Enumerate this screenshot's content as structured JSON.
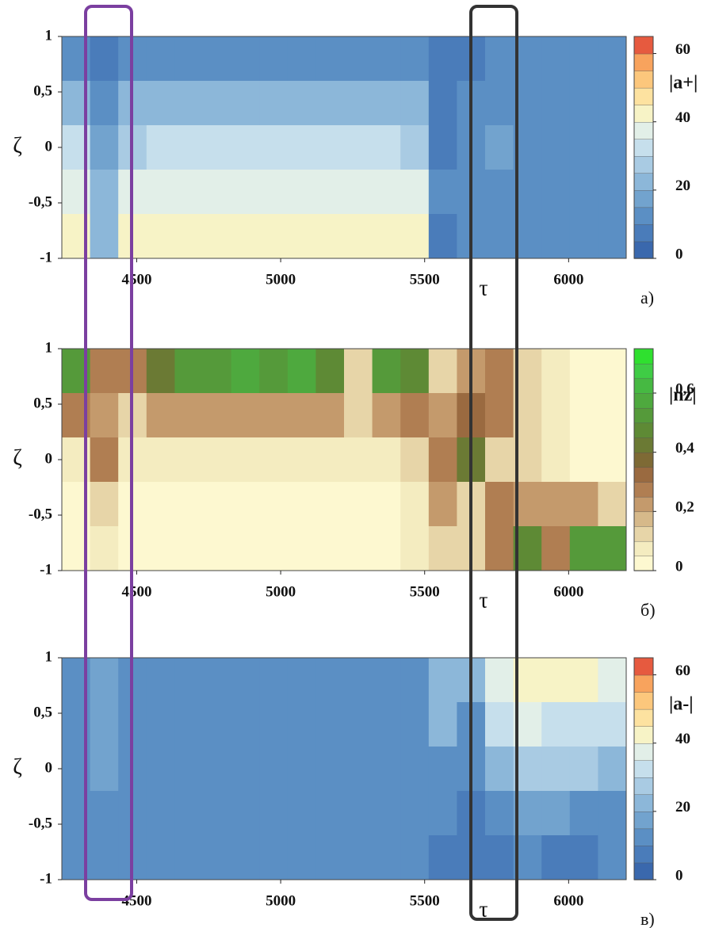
{
  "chart_data": [
    {
      "type": "contour",
      "panel_label": "а)",
      "xlabel": "τ",
      "ylabel": "ζ",
      "colorbar_label": "|a+|",
      "xlim": [
        4240,
        6200
      ],
      "xticks": [
        4500,
        5000,
        5500,
        6000
      ],
      "ylim": [
        -1,
        1
      ],
      "yticks": [
        -1,
        {
          "value": -0.5,
          "label": "-0,5"
        },
        0,
        {
          "value": 0.5,
          "label": "0,5"
        },
        1
      ],
      "clim": [
        0,
        65
      ],
      "cticks": [
        0,
        20,
        40,
        60
      ],
      "colors": [
        "#3a68ad",
        "#4a7cba",
        "#5b8fc4",
        "#72a3ce",
        "#8cb7d9",
        "#a9cbe3",
        "#c6dfec",
        "#e2efe8",
        "#f7f3c6",
        "#fde2a0",
        "#fcc77c",
        "#f8a35d",
        "#e65a3f"
      ],
      "x": [
        4289,
        4387,
        4485,
        4583,
        4681,
        4779,
        4877,
        4975,
        5073,
        5171,
        5269,
        5367,
        5465,
        5563,
        5661,
        5759,
        5857,
        5955,
        6053,
        6151
      ],
      "y": [
        0.8,
        0.4,
        0,
        -0.4,
        -0.8
      ],
      "z": [
        [
          12,
          8,
          10,
          12,
          12,
          14,
          12,
          14,
          14,
          12,
          12,
          14,
          12,
          6,
          8,
          10,
          10,
          10,
          12,
          10
        ],
        [
          20,
          12,
          20,
          22,
          22,
          24,
          22,
          22,
          24,
          22,
          22,
          22,
          20,
          8,
          10,
          12,
          12,
          10,
          12,
          10
        ],
        [
          30,
          18,
          28,
          30,
          30,
          30,
          30,
          30,
          30,
          30,
          30,
          30,
          28,
          8,
          12,
          16,
          12,
          10,
          12,
          12
        ],
        [
          38,
          20,
          36,
          38,
          38,
          38,
          38,
          38,
          36,
          38,
          38,
          36,
          36,
          10,
          12,
          14,
          12,
          10,
          12,
          12
        ],
        [
          42,
          24,
          40,
          42,
          42,
          42,
          42,
          42,
          40,
          42,
          42,
          40,
          40,
          8,
          14,
          12,
          10,
          10,
          10,
          12
        ]
      ]
    },
    {
      "type": "contour",
      "panel_label": "б)",
      "xlabel": "τ",
      "ylabel": "ζ",
      "colorbar_label": "|nz|",
      "xlim": [
        4240,
        6200
      ],
      "xticks": [
        4500,
        5000,
        5500,
        6000
      ],
      "ylim": [
        -1,
        1
      ],
      "yticks": [
        -1,
        {
          "value": -0.5,
          "label": "-0,5"
        },
        0,
        {
          "value": 0.5,
          "label": "0,5"
        },
        1
      ],
      "clim": [
        0,
        0.75
      ],
      "cticks": [
        0,
        {
          "value": 0.2,
          "label": "0,2"
        },
        {
          "value": 0.4,
          "label": "0,4"
        },
        {
          "value": 0.6,
          "label": "0,6"
        }
      ],
      "colors": [
        "#fdf8d0",
        "#f4ecc0",
        "#e7d5a8",
        "#d6b98a",
        "#c49a6c",
        "#b07e52",
        "#9a6a40",
        "#7e6a35",
        "#6b7a34",
        "#5e8a35",
        "#559a3a",
        "#4ea93e",
        "#46b942",
        "#3fcc45",
        "#2fe02f"
      ],
      "x": [
        4289,
        4387,
        4485,
        4583,
        4681,
        4779,
        4877,
        4975,
        5073,
        5171,
        5269,
        5367,
        5465,
        5563,
        5661,
        5759,
        5857,
        5955,
        6053,
        6151
      ],
      "y": [
        0.8,
        0.4,
        0,
        -0.4,
        -0.8
      ],
      "z": [
        [
          0.5,
          0.3,
          0.3,
          0.4,
          0.5,
          0.5,
          0.55,
          0.5,
          0.55,
          0.45,
          0.15,
          0.5,
          0.45,
          0.1,
          0.2,
          0.3,
          0.1,
          0.05,
          0.02,
          0.02
        ],
        [
          0.25,
          0.2,
          0.15,
          0.2,
          0.2,
          0.2,
          0.2,
          0.2,
          0.2,
          0.2,
          0.12,
          0.2,
          0.25,
          0.2,
          0.35,
          0.3,
          0.1,
          0.05,
          0.03,
          0.03
        ],
        [
          0.08,
          0.25,
          0.05,
          0.06,
          0.06,
          0.06,
          0.06,
          0.06,
          0.06,
          0.06,
          0.06,
          0.06,
          0.1,
          0.3,
          0.4,
          0.1,
          0.1,
          0.05,
          0.03,
          0.03
        ],
        [
          0.04,
          0.15,
          0.03,
          0.03,
          0.03,
          0.03,
          0.03,
          0.03,
          0.03,
          0.03,
          0.03,
          0.04,
          0.08,
          0.2,
          0.15,
          0.25,
          0.2,
          0.2,
          0.22,
          0.15
        ],
        [
          0.03,
          0.08,
          0.02,
          0.02,
          0.02,
          0.02,
          0.02,
          0.02,
          0.02,
          0.02,
          0.02,
          0.02,
          0.05,
          0.12,
          0.15,
          0.3,
          0.45,
          0.25,
          0.5,
          0.5
        ]
      ]
    },
    {
      "type": "contour",
      "panel_label": "в)",
      "xlabel": "τ",
      "ylabel": "ζ",
      "colorbar_label": "|a-|",
      "xlim": [
        4240,
        6200
      ],
      "xticks": [
        4500,
        5000,
        5500,
        6000
      ],
      "ylim": [
        -1,
        1
      ],
      "yticks": [
        -1,
        {
          "value": -0.5,
          "label": "-0,5"
        },
        0,
        {
          "value": 0.5,
          "label": "0,5"
        },
        1
      ],
      "clim": [
        0,
        65
      ],
      "cticks": [
        0,
        20,
        40,
        60
      ],
      "colors": [
        "#3a68ad",
        "#4a7cba",
        "#5b8fc4",
        "#72a3ce",
        "#8cb7d9",
        "#a9cbe3",
        "#c6dfec",
        "#e2efe8",
        "#f7f3c6",
        "#fde2a0",
        "#fcc77c",
        "#f8a35d",
        "#e65a3f"
      ],
      "x": [
        4289,
        4387,
        4485,
        4583,
        4681,
        4779,
        4877,
        4975,
        5073,
        5171,
        5269,
        5367,
        5465,
        5563,
        5661,
        5759,
        5857,
        5955,
        6053,
        6151
      ],
      "y": [
        0.8,
        0.4,
        0,
        -0.4,
        -0.8
      ],
      "z": [
        [
          14,
          18,
          12,
          10,
          12,
          14,
          12,
          12,
          10,
          10,
          14,
          12,
          14,
          22,
          20,
          38,
          44,
          40,
          40,
          38
        ],
        [
          12,
          16,
          12,
          10,
          12,
          12,
          12,
          10,
          10,
          10,
          12,
          12,
          14,
          20,
          14,
          30,
          36,
          32,
          30,
          32
        ],
        [
          14,
          16,
          12,
          12,
          12,
          14,
          12,
          12,
          12,
          12,
          14,
          12,
          12,
          14,
          10,
          22,
          28,
          26,
          26,
          24
        ],
        [
          14,
          14,
          14,
          14,
          14,
          14,
          14,
          14,
          14,
          14,
          14,
          14,
          12,
          10,
          8,
          14,
          18,
          16,
          14,
          14
        ],
        [
          14,
          12,
          14,
          14,
          14,
          14,
          14,
          14,
          14,
          14,
          14,
          14,
          12,
          8,
          6,
          8,
          10,
          8,
          6,
          10
        ]
      ]
    }
  ]
}
